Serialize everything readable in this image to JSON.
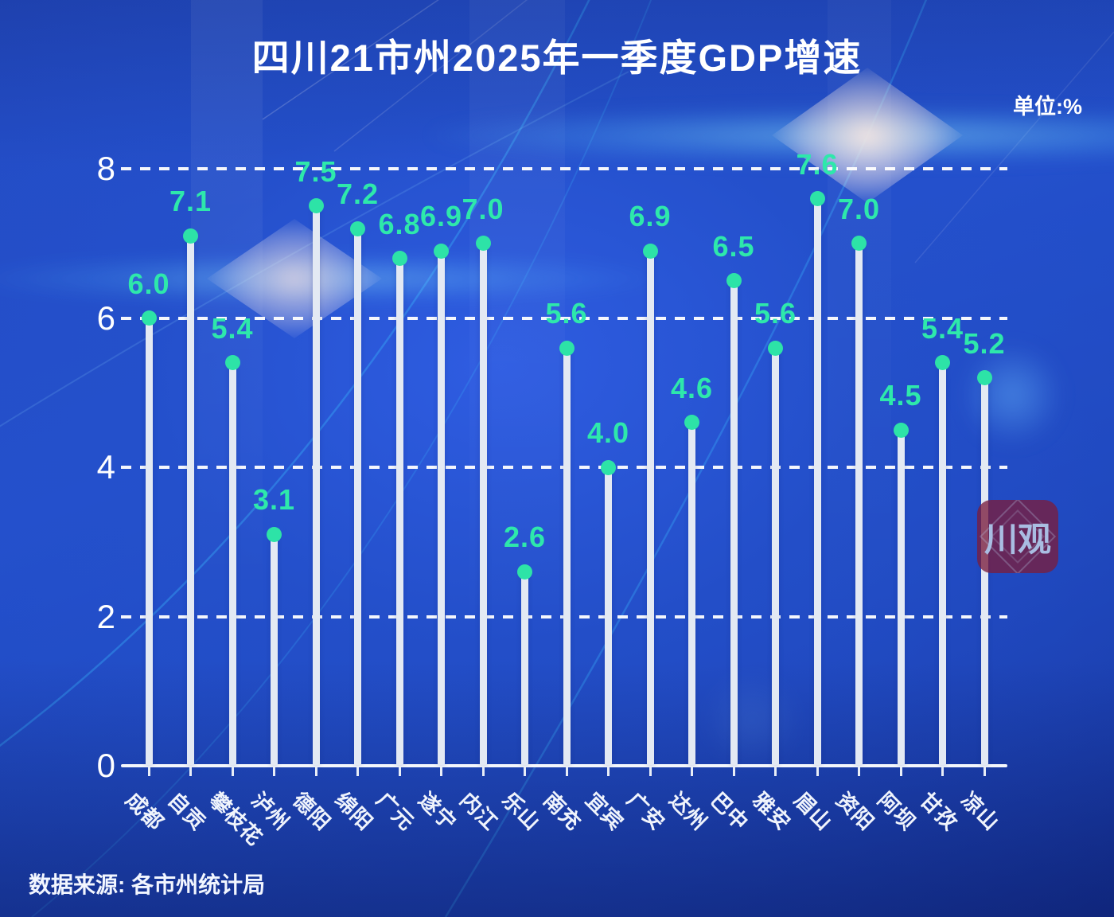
{
  "title": "四川21市州2025年一季度GDP增速",
  "unit_label": "单位:%",
  "source": "数据来源: 各市州统计局",
  "watermark": {
    "text": "川观"
  },
  "colors": {
    "accent": "#2de3a7",
    "stem": "#e3e9f3",
    "background": "#2350cd",
    "text": "#ffffff",
    "watermark_bg": "#7a1e3e"
  },
  "chart_data": {
    "type": "bar",
    "style": "lollipop",
    "title": "四川21市州2025年一季度GDP增速",
    "unit": "%",
    "categories": [
      "成都",
      "自贡",
      "攀枝花",
      "泸州",
      "德阳",
      "绵阳",
      "广元",
      "遂宁",
      "内江",
      "乐山",
      "南充",
      "宜宾",
      "广安",
      "达州",
      "巴中",
      "雅安",
      "眉山",
      "资阳",
      "阿坝",
      "甘孜",
      "凉山"
    ],
    "values": [
      6.0,
      7.1,
      5.4,
      3.1,
      7.5,
      7.2,
      6.8,
      6.9,
      7.0,
      2.6,
      5.6,
      4.0,
      6.9,
      4.6,
      6.5,
      5.6,
      7.6,
      7.0,
      4.5,
      5.4,
      5.2
    ],
    "yticks": [
      0,
      2,
      4,
      6,
      8
    ],
    "ylim": [
      0,
      8.6
    ],
    "xlabel": "",
    "ylabel": "",
    "grid": "dashed-horizontal",
    "legend": "none",
    "value_label_format": "one-decimal"
  }
}
